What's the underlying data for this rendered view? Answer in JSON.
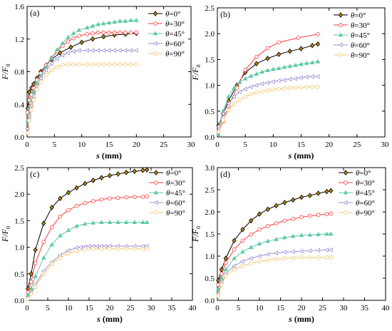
{
  "figure": {
    "panel_count": 4,
    "layout": "2x2 grid"
  },
  "series_styles": [
    {
      "name": "θ=0°",
      "color": "#000000",
      "fill": "#b8860b",
      "marker": "diamond"
    },
    {
      "name": "θ=30°",
      "color": "#ff3b3b",
      "fill": "#ffffff",
      "marker": "circle"
    },
    {
      "name": "θ=45°",
      "color": "#5fc9a8",
      "fill": "#5fc9a8",
      "marker": "triangle"
    },
    {
      "name": "θ=60°",
      "color": "#9f8fd6",
      "fill": "#ffffff",
      "marker": "triangle-left"
    },
    {
      "name": "θ=90°",
      "color": "#f5c66b",
      "fill": "#ffffff",
      "marker": "circle"
    }
  ],
  "chart_data": [
    {
      "type": "line",
      "panel_label": "(a)",
      "xlabel_var": "s",
      "xlabel_unit": " (mm)",
      "ylabel": "F/F",
      "ylabel_sub": "0",
      "xlim": [
        0,
        30
      ],
      "ylim": [
        0,
        1.6
      ],
      "xticks": [
        0,
        5,
        10,
        15,
        20,
        25,
        30
      ],
      "yticks": [
        0.0,
        0.4,
        0.8,
        1.2,
        1.6
      ],
      "yticks_text": [
        "0.0",
        "0.4",
        "0.8",
        "1.2",
        "1.6"
      ],
      "grid": false,
      "legend_position": "top-right",
      "series": [
        {
          "name": "θ=0°",
          "x": [
            0.1,
            0.4,
            0.8,
            1.2,
            1.8,
            2.5,
            3.5,
            4.5,
            6,
            8,
            10,
            12,
            14,
            16,
            18,
            20
          ],
          "y": [
            0.35,
            0.55,
            0.6,
            0.65,
            0.72,
            0.8,
            0.88,
            0.95,
            1.03,
            1.1,
            1.16,
            1.2,
            1.23,
            1.25,
            1.26,
            1.27
          ]
        },
        {
          "name": "θ=30°",
          "x": [
            0.1,
            0.4,
            0.8,
            1.2,
            1.8,
            2.5,
            3.5,
            4.5,
            5.5,
            6.5,
            7.5,
            8.5,
            9.5,
            11,
            12,
            13,
            14,
            15,
            16,
            17,
            18,
            19,
            20
          ],
          "y": [
            0.3,
            0.45,
            0.52,
            0.6,
            0.7,
            0.78,
            0.88,
            0.97,
            1.05,
            1.12,
            1.17,
            1.21,
            1.24,
            1.26,
            1.27,
            1.28,
            1.28,
            1.28,
            1.28,
            1.28,
            1.28,
            1.28,
            1.28
          ]
        },
        {
          "name": "θ=45°",
          "x": [
            0.1,
            0.4,
            0.8,
            1.2,
            1.8,
            2.5,
            3.5,
            4.5,
            5.5,
            6.5,
            7.5,
            8.5,
            9.5,
            11,
            12,
            13,
            14,
            15,
            16,
            17,
            18,
            19,
            20
          ],
          "y": [
            0.2,
            0.35,
            0.45,
            0.55,
            0.66,
            0.75,
            0.86,
            0.97,
            1.07,
            1.15,
            1.22,
            1.27,
            1.31,
            1.34,
            1.36,
            1.38,
            1.39,
            1.4,
            1.41,
            1.42,
            1.42,
            1.43,
            1.43
          ]
        },
        {
          "name": "θ=60°",
          "x": [
            0.1,
            0.4,
            0.8,
            1.2,
            1.8,
            2.5,
            3.5,
            4.5,
            5.5,
            6.5,
            7.5,
            8.5,
            9.5,
            11,
            12,
            13,
            14,
            15,
            16,
            17,
            18,
            19,
            20
          ],
          "y": [
            0.1,
            0.25,
            0.38,
            0.5,
            0.62,
            0.72,
            0.82,
            0.9,
            0.96,
            1.0,
            1.03,
            1.05,
            1.06,
            1.06,
            1.06,
            1.06,
            1.06,
            1.06,
            1.06,
            1.06,
            1.06,
            1.06,
            1.06
          ]
        },
        {
          "name": "θ=90°",
          "x": [
            0.1,
            0.4,
            0.8,
            1.2,
            1.8,
            2.5,
            3.5,
            4.5,
            5.5,
            6.5,
            7.5,
            8.5,
            9.5,
            11,
            12,
            13,
            14,
            15,
            16,
            17,
            18,
            19,
            20
          ],
          "y": [
            0.05,
            0.2,
            0.33,
            0.45,
            0.58,
            0.67,
            0.76,
            0.82,
            0.86,
            0.88,
            0.89,
            0.89,
            0.89,
            0.89,
            0.89,
            0.89,
            0.89,
            0.89,
            0.89,
            0.89,
            0.89,
            0.89,
            0.89
          ]
        }
      ]
    },
    {
      "type": "line",
      "panel_label": "(b)",
      "xlabel_var": "s",
      "xlabel_unit": " (mm)",
      "ylabel": "F/F",
      "ylabel_sub": "0",
      "xlim": [
        0,
        30
      ],
      "ylim": [
        0,
        2.5
      ],
      "xticks": [
        0,
        5,
        10,
        15,
        20,
        25,
        30
      ],
      "yticks": [
        0.0,
        0.5,
        1.0,
        1.5,
        2.0,
        2.5
      ],
      "yticks_text": [
        "0.0",
        "0.5",
        "1.0",
        "1.5",
        "2.0",
        "2.5"
      ],
      "grid": false,
      "legend_position": "top-right",
      "series": [
        {
          "name": "θ=0°",
          "x": [
            0.2,
            1,
            2,
            3.5,
            5,
            7,
            9,
            11,
            13,
            15,
            17,
            18
          ],
          "y": [
            0.22,
            0.45,
            0.7,
            1.0,
            1.25,
            1.42,
            1.52,
            1.6,
            1.66,
            1.71,
            1.77,
            1.8
          ]
        },
        {
          "name": "θ=30°",
          "x": [
            0.2,
            1,
            2,
            3.5,
            5,
            7,
            9,
            11,
            14.5,
            18
          ],
          "y": [
            0.1,
            0.3,
            0.6,
            0.95,
            1.3,
            1.55,
            1.72,
            1.83,
            1.92,
            1.99
          ]
        },
        {
          "name": "θ=45°",
          "x": [
            0.2,
            1,
            2,
            3,
            4,
            5,
            6,
            7,
            8,
            9,
            10,
            11,
            12,
            13,
            14,
            15,
            16,
            17,
            18
          ],
          "y": [
            0.05,
            0.5,
            0.78,
            0.95,
            1.06,
            1.13,
            1.18,
            1.22,
            1.26,
            1.29,
            1.31,
            1.33,
            1.35,
            1.37,
            1.39,
            1.41,
            1.43,
            1.44,
            1.46
          ]
        },
        {
          "name": "θ=60°",
          "x": [
            0.2,
            1,
            2,
            3,
            4,
            5,
            6,
            7,
            8,
            9,
            10,
            11,
            12,
            13,
            14,
            15,
            16,
            17,
            18
          ],
          "y": [
            0.2,
            0.45,
            0.65,
            0.78,
            0.87,
            0.93,
            0.97,
            1.0,
            1.03,
            1.05,
            1.07,
            1.09,
            1.1,
            1.12,
            1.13,
            1.15,
            1.16,
            1.17,
            1.17
          ]
        },
        {
          "name": "θ=90°",
          "x": [
            0.2,
            1,
            2,
            3,
            4,
            5,
            6,
            7,
            8,
            9,
            10,
            11,
            12,
            13,
            14,
            15,
            16,
            17,
            18
          ],
          "y": [
            0.1,
            0.33,
            0.52,
            0.64,
            0.72,
            0.78,
            0.83,
            0.86,
            0.88,
            0.9,
            0.92,
            0.93,
            0.94,
            0.95,
            0.96,
            0.96,
            0.97,
            0.97,
            0.97
          ]
        }
      ]
    },
    {
      "type": "line",
      "panel_label": "(c)",
      "xlabel_var": "s",
      "xlabel_unit": " (mm)",
      "ylabel": "F/F",
      "ylabel_sub": "0",
      "xlim": [
        0,
        40
      ],
      "ylim": [
        0,
        2.5
      ],
      "xticks": [
        0,
        5,
        10,
        15,
        20,
        25,
        30,
        35,
        40
      ],
      "yticks": [
        0.0,
        0.5,
        1.0,
        1.5,
        2.0,
        2.5
      ],
      "yticks_text": [
        "0.0",
        "0.5",
        "1.0",
        "1.5",
        "2.0",
        "2.5"
      ],
      "grid": false,
      "legend_position": "top-right",
      "series": [
        {
          "name": "θ=0°",
          "x": [
            0.2,
            1,
            2,
            4,
            6,
            8,
            10,
            12,
            14,
            16,
            18,
            20,
            22,
            24,
            26,
            28,
            29
          ],
          "y": [
            0.22,
            0.5,
            0.95,
            1.45,
            1.75,
            1.92,
            2.03,
            2.12,
            2.2,
            2.26,
            2.31,
            2.35,
            2.38,
            2.41,
            2.43,
            2.45,
            2.46
          ]
        },
        {
          "name": "θ=30°",
          "x": [
            0.2,
            1,
            2,
            4,
            6,
            8,
            10,
            12,
            14,
            16,
            18,
            20,
            22,
            24,
            26,
            28,
            29
          ],
          "y": [
            0.15,
            0.35,
            0.7,
            1.1,
            1.38,
            1.58,
            1.7,
            1.78,
            1.83,
            1.87,
            1.9,
            1.92,
            1.93,
            1.94,
            1.95,
            1.95,
            1.96
          ]
        },
        {
          "name": "θ=45°",
          "x": [
            0.2,
            1,
            2,
            4,
            6,
            8,
            10,
            12,
            14,
            16,
            18,
            20,
            22,
            24,
            26,
            28,
            29
          ],
          "y": [
            0.1,
            0.22,
            0.45,
            0.8,
            1.05,
            1.22,
            1.32,
            1.4,
            1.44,
            1.46,
            1.47,
            1.47,
            1.47,
            1.47,
            1.47,
            1.47,
            1.47
          ]
        },
        {
          "name": "θ=60°",
          "x": [
            0.2,
            1,
            2,
            4,
            6,
            8,
            10,
            12,
            13,
            14,
            15,
            16,
            17,
            18,
            19,
            20,
            22,
            24,
            26,
            28,
            29
          ],
          "y": [
            0.05,
            0.15,
            0.3,
            0.55,
            0.72,
            0.85,
            0.94,
            0.99,
            1.0,
            1.01,
            1.02,
            1.02,
            1.02,
            1.02,
            1.02,
            1.02,
            1.02,
            1.02,
            1.02,
            1.02,
            1.02
          ]
        },
        {
          "name": "θ=90°",
          "x": [
            0.2,
            1,
            2,
            4,
            6,
            8,
            10,
            12,
            14,
            16,
            18,
            20,
            22,
            24,
            26,
            28,
            29
          ],
          "y": [
            0.03,
            0.12,
            0.25,
            0.5,
            0.68,
            0.8,
            0.88,
            0.93,
            0.96,
            0.97,
            0.97,
            0.97,
            0.97,
            0.97,
            0.97,
            0.97,
            0.97
          ]
        }
      ]
    },
    {
      "type": "line",
      "panel_label": "(d)",
      "xlabel_var": "s",
      "xlabel_unit": " (mm)",
      "ylabel": "F/F",
      "ylabel_sub": "0",
      "xlim": [
        0,
        40
      ],
      "ylim": [
        0,
        3.0
      ],
      "xticks": [
        0,
        5,
        10,
        15,
        20,
        25,
        30,
        35,
        40
      ],
      "yticks": [
        0.0,
        0.5,
        1.0,
        1.5,
        2.0,
        2.5,
        3.0
      ],
      "yticks_text": [
        "0.0",
        "0.5",
        "1.0",
        "1.5",
        "2.0",
        "2.5",
        "3.0"
      ],
      "grid": false,
      "legend_position": "top-right",
      "series": [
        {
          "name": "θ=0°",
          "x": [
            0.2,
            1,
            2,
            4,
            6,
            8,
            10,
            12,
            14,
            16,
            18,
            20,
            22,
            24,
            26,
            27
          ],
          "y": [
            0.45,
            0.7,
            0.95,
            1.35,
            1.6,
            1.8,
            1.95,
            2.06,
            2.14,
            2.21,
            2.27,
            2.33,
            2.37,
            2.42,
            2.46,
            2.48
          ]
        },
        {
          "name": "θ=30°",
          "x": [
            0.2,
            1,
            2,
            4,
            6,
            8,
            10,
            12,
            14,
            16,
            18,
            20,
            22,
            24,
            26,
            27
          ],
          "y": [
            0.35,
            0.6,
            0.85,
            1.15,
            1.35,
            1.49,
            1.6,
            1.68,
            1.74,
            1.8,
            1.84,
            1.88,
            1.91,
            1.93,
            1.95,
            1.96
          ]
        },
        {
          "name": "θ=45°",
          "x": [
            0.2,
            1,
            2,
            4,
            6,
            8,
            10,
            12,
            14,
            16,
            18,
            20,
            22,
            24,
            26,
            27
          ],
          "y": [
            0.25,
            0.5,
            0.7,
            0.95,
            1.1,
            1.2,
            1.28,
            1.34,
            1.38,
            1.42,
            1.45,
            1.47,
            1.48,
            1.49,
            1.5,
            1.5
          ]
        },
        {
          "name": "θ=60°",
          "x": [
            0.2,
            1,
            2,
            4,
            6,
            8,
            10,
            12,
            14,
            16,
            18,
            20,
            22,
            24,
            26,
            27
          ],
          "y": [
            0.15,
            0.4,
            0.6,
            0.78,
            0.88,
            0.95,
            1.0,
            1.04,
            1.07,
            1.09,
            1.1,
            1.11,
            1.12,
            1.13,
            1.14,
            1.14
          ]
        },
        {
          "name": "θ=90°",
          "x": [
            0.2,
            1,
            2,
            4,
            6,
            8,
            10,
            12,
            14,
            16,
            18,
            20,
            22,
            24,
            26,
            27
          ],
          "y": [
            0.1,
            0.35,
            0.55,
            0.7,
            0.78,
            0.84,
            0.88,
            0.91,
            0.93,
            0.95,
            0.96,
            0.97,
            0.97,
            0.97,
            0.97,
            0.97
          ]
        }
      ]
    }
  ]
}
